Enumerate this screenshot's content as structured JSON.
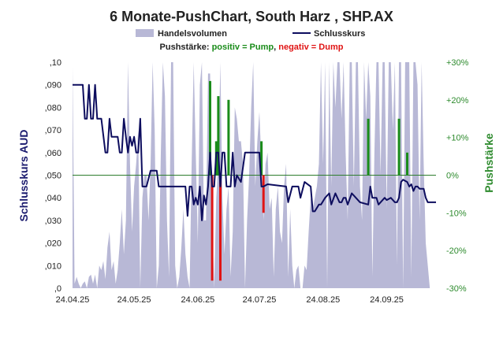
{
  "chart_data": {
    "type": "line",
    "title": "6 Monate-PushChart, South Harz , SHP.AX",
    "legend": {
      "volume_label": "Handelsvolumen",
      "close_label": "Schlusskurs",
      "push_prefix": "Pushstärke: ",
      "push_positive": "positiv = Pump",
      "push_sep": ", ",
      "push_negative": "negativ = Dump"
    },
    "ylabel_left": "Schlusskurs AUD",
    "ylabel_right": "Pushstärke",
    "ylim_left": [
      0,
      0.1
    ],
    "ylim_right": [
      -30,
      30
    ],
    "y_ticks_left": [
      ",0",
      ",010",
      ",020",
      ",030",
      ",040",
      ",050",
      ",060",
      ",070",
      ",080",
      ",090",
      ",10"
    ],
    "y_ticks_right": [
      "-30%",
      "-20%",
      "-10%",
      "0%",
      "+10%",
      "+20%",
      "+30%"
    ],
    "x_tick_labels": [
      "24.04.25",
      "24.05.25",
      "24.06.25",
      "24.07.25",
      "24.08.25",
      "24.09.25"
    ],
    "x_tick_days": [
      0,
      30,
      61,
      91,
      122,
      153
    ],
    "x_range_days": [
      0,
      177
    ],
    "close_series": [
      [
        0,
        0.09
      ],
      [
        5,
        0.09
      ],
      [
        6,
        0.075
      ],
      [
        7,
        0.075
      ],
      [
        8,
        0.09
      ],
      [
        9,
        0.075
      ],
      [
        10,
        0.075
      ],
      [
        11,
        0.09
      ],
      [
        12,
        0.075
      ],
      [
        14,
        0.075
      ],
      [
        16,
        0.06
      ],
      [
        17,
        0.06
      ],
      [
        18,
        0.075
      ],
      [
        19,
        0.067
      ],
      [
        22,
        0.067
      ],
      [
        23,
        0.06
      ],
      [
        24,
        0.06
      ],
      [
        25,
        0.075
      ],
      [
        26,
        0.067
      ],
      [
        27,
        0.06
      ],
      [
        28,
        0.067
      ],
      [
        29,
        0.063
      ],
      [
        30,
        0.067
      ],
      [
        31,
        0.06
      ],
      [
        32,
        0.06
      ],
      [
        33,
        0.075
      ],
      [
        34,
        0.045
      ],
      [
        36,
        0.045
      ],
      [
        38,
        0.052
      ],
      [
        41,
        0.052
      ],
      [
        42,
        0.045
      ],
      [
        55,
        0.045
      ],
      [
        56,
        0.032
      ],
      [
        57,
        0.045
      ],
      [
        58,
        0.045
      ],
      [
        59,
        0.037
      ],
      [
        60,
        0.04
      ],
      [
        61,
        0.037
      ],
      [
        62,
        0.045
      ],
      [
        63,
        0.03
      ],
      [
        64,
        0.041
      ],
      [
        65,
        0.037
      ],
      [
        66,
        0.045
      ],
      [
        67,
        0.06
      ],
      [
        68,
        0.045
      ],
      [
        69,
        0.045
      ],
      [
        70,
        0.06
      ],
      [
        71,
        0.06
      ],
      [
        72,
        0.045
      ],
      [
        73,
        0.06
      ],
      [
        74,
        0.06
      ],
      [
        75,
        0.045
      ],
      [
        77,
        0.045
      ],
      [
        78,
        0.06
      ],
      [
        79,
        0.045
      ],
      [
        80,
        0.05
      ],
      [
        82,
        0.047
      ],
      [
        84,
        0.06
      ],
      [
        91,
        0.06
      ],
      [
        92,
        0.045
      ],
      [
        93,
        0.045
      ],
      [
        95,
        0.046
      ],
      [
        104,
        0.045
      ],
      [
        105,
        0.038
      ],
      [
        107,
        0.045
      ],
      [
        110,
        0.045
      ],
      [
        111,
        0.04
      ],
      [
        113,
        0.047
      ],
      [
        116,
        0.045
      ],
      [
        117,
        0.034
      ],
      [
        118,
        0.034
      ],
      [
        120,
        0.037
      ],
      [
        121,
        0.037
      ],
      [
        123,
        0.04
      ],
      [
        125,
        0.042
      ],
      [
        126,
        0.037
      ],
      [
        128,
        0.042
      ],
      [
        130,
        0.038
      ],
      [
        131,
        0.038
      ],
      [
        132,
        0.04
      ],
      [
        133,
        0.04
      ],
      [
        134,
        0.037
      ],
      [
        136,
        0.042
      ],
      [
        137,
        0.041
      ],
      [
        138,
        0.04
      ],
      [
        140,
        0.038
      ],
      [
        144,
        0.037
      ],
      [
        145,
        0.045
      ],
      [
        146,
        0.04
      ],
      [
        147,
        0.04
      ],
      [
        148,
        0.04
      ],
      [
        149,
        0.037
      ],
      [
        150,
        0.038
      ],
      [
        152,
        0.04
      ],
      [
        153,
        0.039
      ],
      [
        155,
        0.04
      ],
      [
        157,
        0.038
      ],
      [
        158,
        0.038
      ],
      [
        159,
        0.04
      ],
      [
        160,
        0.047
      ],
      [
        161,
        0.048
      ],
      [
        163,
        0.047
      ],
      [
        164,
        0.045
      ],
      [
        165,
        0.046
      ],
      [
        166,
        0.043
      ],
      [
        167,
        0.045
      ],
      [
        168,
        0.045
      ],
      [
        169,
        0.044
      ],
      [
        171,
        0.044
      ],
      [
        172,
        0.04
      ],
      [
        173,
        0.038
      ],
      [
        174,
        0.038
      ],
      [
        177,
        0.038
      ]
    ],
    "push_series": [
      [
        67,
        25
      ],
      [
        68,
        -28
      ],
      [
        70,
        9
      ],
      [
        71,
        21
      ],
      [
        72,
        -28
      ],
      [
        76,
        20
      ],
      [
        92,
        9
      ],
      [
        93,
        -10
      ],
      [
        144,
        15
      ],
      [
        159,
        15
      ],
      [
        163,
        6
      ]
    ],
    "volume_series": [
      [
        0,
        98
      ],
      [
        1,
        2
      ],
      [
        2,
        5
      ],
      [
        3,
        2
      ],
      [
        4,
        0
      ],
      [
        5,
        2
      ],
      [
        6,
        3
      ],
      [
        7,
        0
      ],
      [
        8,
        5
      ],
      [
        9,
        6
      ],
      [
        10,
        2
      ],
      [
        11,
        6
      ],
      [
        12,
        0
      ],
      [
        13,
        10
      ],
      [
        14,
        8
      ],
      [
        15,
        12
      ],
      [
        16,
        4
      ],
      [
        17,
        18
      ],
      [
        18,
        25
      ],
      [
        19,
        8
      ],
      [
        20,
        12
      ],
      [
        21,
        2
      ],
      [
        22,
        8
      ],
      [
        23,
        20
      ],
      [
        24,
        35
      ],
      [
        25,
        15
      ],
      [
        26,
        30
      ],
      [
        27,
        100
      ],
      [
        28,
        55
      ],
      [
        29,
        25
      ],
      [
        30,
        45
      ],
      [
        31,
        55
      ],
      [
        32,
        70
      ],
      [
        33,
        0
      ],
      [
        34,
        40
      ],
      [
        35,
        50
      ],
      [
        36,
        50
      ],
      [
        37,
        30
      ],
      [
        38,
        55
      ],
      [
        39,
        100
      ],
      [
        40,
        70
      ],
      [
        41,
        0
      ],
      [
        42,
        10
      ],
      [
        43,
        60
      ],
      [
        44,
        100
      ],
      [
        45,
        85
      ],
      [
        46,
        30
      ],
      [
        47,
        5
      ],
      [
        48,
        100
      ],
      [
        49,
        100
      ],
      [
        50,
        10
      ],
      [
        51,
        0
      ],
      [
        52,
        5
      ],
      [
        53,
        18
      ],
      [
        54,
        35
      ],
      [
        55,
        15
      ],
      [
        56,
        5
      ],
      [
        57,
        0
      ],
      [
        58,
        55
      ],
      [
        59,
        100
      ],
      [
        60,
        60
      ],
      [
        61,
        20
      ],
      [
        62,
        90
      ],
      [
        63,
        100
      ],
      [
        64,
        30
      ],
      [
        65,
        30
      ],
      [
        66,
        95
      ],
      [
        67,
        95
      ],
      [
        68,
        30
      ],
      [
        69,
        0
      ],
      [
        70,
        40
      ],
      [
        71,
        55
      ],
      [
        72,
        100
      ],
      [
        73,
        40
      ],
      [
        74,
        15
      ],
      [
        75,
        35
      ],
      [
        76,
        45
      ],
      [
        77,
        5
      ],
      [
        78,
        25
      ],
      [
        79,
        80
      ],
      [
        80,
        75
      ],
      [
        81,
        65
      ],
      [
        82,
        65
      ],
      [
        83,
        55
      ],
      [
        84,
        0
      ],
      [
        85,
        30
      ],
      [
        86,
        50
      ],
      [
        87,
        80
      ],
      [
        88,
        100
      ],
      [
        89,
        45
      ],
      [
        90,
        65
      ],
      [
        91,
        78
      ],
      [
        92,
        55
      ],
      [
        93,
        30
      ],
      [
        94,
        55
      ],
      [
        95,
        60
      ],
      [
        96,
        35
      ],
      [
        97,
        40
      ],
      [
        98,
        5
      ],
      [
        99,
        35
      ],
      [
        100,
        45
      ],
      [
        101,
        25
      ],
      [
        102,
        20
      ],
      [
        103,
        45
      ],
      [
        104,
        55
      ],
      [
        105,
        5
      ],
      [
        106,
        35
      ],
      [
        107,
        10
      ],
      [
        108,
        0
      ],
      [
        109,
        8
      ],
      [
        110,
        10
      ],
      [
        111,
        0
      ],
      [
        112,
        0
      ],
      [
        113,
        10
      ],
      [
        114,
        8
      ],
      [
        115,
        25
      ],
      [
        116,
        40
      ],
      [
        117,
        35
      ],
      [
        118,
        40
      ],
      [
        119,
        45
      ],
      [
        120,
        55
      ],
      [
        121,
        100
      ],
      [
        122,
        55
      ],
      [
        123,
        100
      ],
      [
        124,
        0
      ],
      [
        125,
        100
      ],
      [
        126,
        45
      ],
      [
        127,
        100
      ],
      [
        128,
        80
      ],
      [
        129,
        100
      ],
      [
        130,
        100
      ],
      [
        131,
        75
      ],
      [
        132,
        100
      ],
      [
        133,
        60
      ],
      [
        134,
        30
      ],
      [
        135,
        100
      ],
      [
        136,
        100
      ],
      [
        137,
        45
      ],
      [
        138,
        100
      ],
      [
        139,
        100
      ],
      [
        140,
        45
      ],
      [
        141,
        30
      ],
      [
        142,
        100
      ],
      [
        143,
        75
      ],
      [
        144,
        100
      ],
      [
        145,
        85
      ],
      [
        146,
        5
      ],
      [
        147,
        60
      ],
      [
        148,
        100
      ],
      [
        149,
        100
      ],
      [
        150,
        50
      ],
      [
        151,
        100
      ],
      [
        152,
        100
      ],
      [
        153,
        35
      ],
      [
        154,
        100
      ],
      [
        155,
        100
      ],
      [
        156,
        70
      ],
      [
        157,
        100
      ],
      [
        158,
        10
      ],
      [
        159,
        100
      ],
      [
        160,
        100
      ],
      [
        161,
        0
      ],
      [
        162,
        100
      ],
      [
        163,
        100
      ],
      [
        164,
        100
      ],
      [
        165,
        5
      ],
      [
        166,
        100
      ],
      [
        167,
        100
      ],
      [
        168,
        90
      ],
      [
        169,
        30
      ],
      [
        170,
        100
      ],
      [
        171,
        55
      ],
      [
        172,
        20
      ],
      [
        173,
        10
      ],
      [
        174,
        0
      ],
      [
        175,
        0
      ],
      [
        176,
        0
      ],
      [
        177,
        0
      ]
    ],
    "colors": {
      "close": "#0d0d5e",
      "volume": "#b8b8d6",
      "pump": "#1a8c1a",
      "dump": "#e01414",
      "zero_line": "#2e7d2e",
      "right_axis_text": "#2e8b2e",
      "left_axis_title": "#1a1a6e"
    }
  }
}
